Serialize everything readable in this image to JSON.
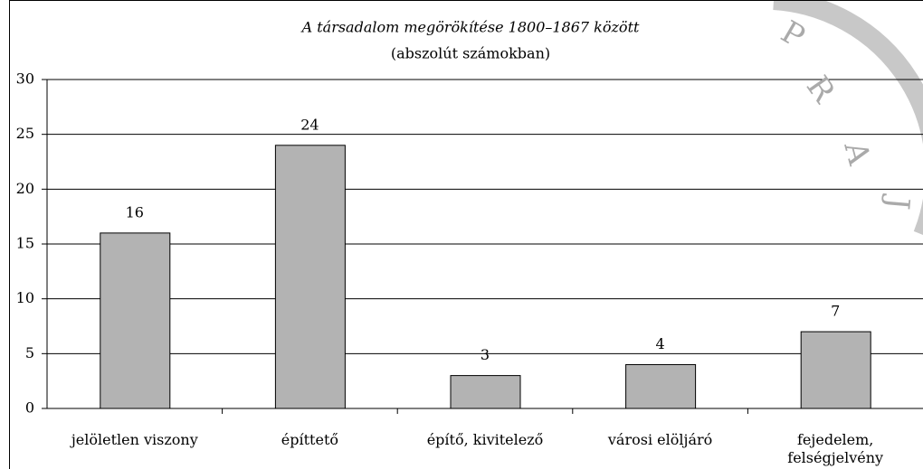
{
  "chart_data": {
    "type": "bar",
    "title": "A társadalom megörökítése 1800–1867 között",
    "subtitle": "(abszolút számokban)",
    "categories": [
      "jelöletlen viszony",
      "építtető",
      "építő, kivitelező",
      "városi elöljáró",
      "fejedelem, felségjelvény"
    ],
    "values": [
      16,
      24,
      3,
      4,
      7
    ],
    "color": "#b3b3b3",
    "ylim": [
      0,
      30
    ],
    "yticks": [
      0,
      5,
      10,
      15,
      20,
      25,
      30
    ],
    "grid": true,
    "watermark": [
      "P",
      "R",
      "A",
      "J"
    ]
  }
}
